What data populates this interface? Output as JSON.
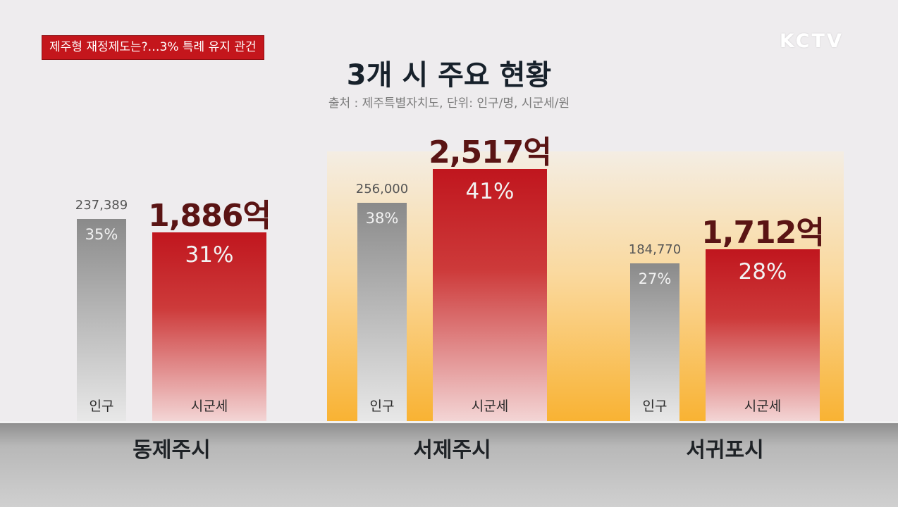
{
  "headline": "제주형 재정제도는?…3% 특례 유지 관건",
  "logo": "KCTV",
  "chart_data": {
    "type": "bar",
    "title": "3개 시 주요 현황",
    "subtitle": "출처 : 제주특별자치도, 단위: 인구/명, 시군세/원",
    "categories": [
      "동제주시",
      "서제주시",
      "서귀포시"
    ],
    "series": [
      {
        "label": "인구",
        "values": [
          237389,
          256000,
          184770
        ],
        "value_labels": [
          "237,389",
          "256,000",
          "184,770"
        ],
        "percent_labels": [
          "35%",
          "38%",
          "27%"
        ]
      },
      {
        "label": "시군세",
        "values": [
          1886,
          2517,
          1712
        ],
        "value_labels": [
          "1,886억",
          "2,517억",
          "1,712억"
        ],
        "percent_labels": [
          "31%",
          "41%",
          "28%"
        ]
      }
    ],
    "highlighted_category": "서제주시"
  },
  "colors": {
    "headline_bg": "#c4161c",
    "population_bar": "#8a8a8a",
    "tax_bar": "#c0161e",
    "highlight": "#f9b232",
    "title_text": "#17212b",
    "tax_value_text": "#5a1414"
  }
}
